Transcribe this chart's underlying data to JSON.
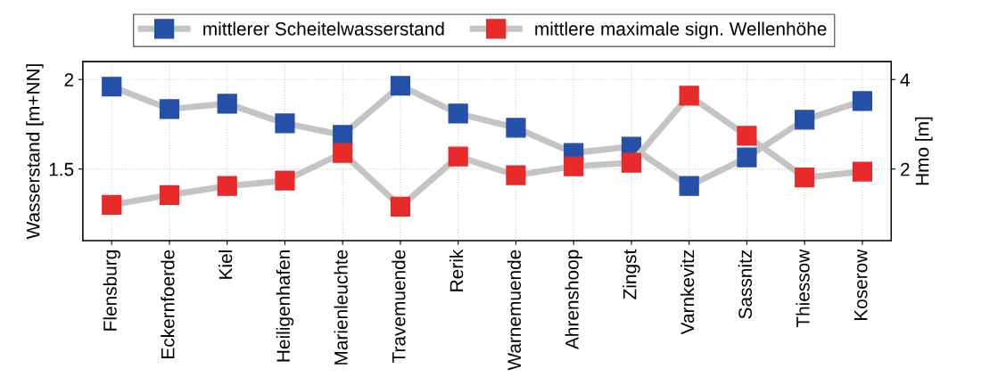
{
  "chart_data": {
    "type": "line",
    "ylabel": "Wasserstand [m+NN]",
    "y2label": "Hmo [m]",
    "categories": [
      "Flensburg",
      "Eckernfoerde",
      "Kiel",
      "Heiligenhafen",
      "Marienleuchte",
      "Travemuende",
      "Rerik",
      "Warnemuende",
      "Ahrenshoop",
      "Zingst",
      "Varnkevitz",
      "Sassnitz",
      "Thiessow",
      "Koserow"
    ],
    "series": [
      {
        "name": "mittlerer Scheitelwasserstand",
        "color": "#2450a8",
        "values": [
          1.96,
          1.835,
          1.865,
          1.755,
          1.69,
          1.965,
          1.81,
          1.73,
          1.59,
          1.625,
          1.405,
          1.565,
          1.775,
          1.88
        ]
      },
      {
        "name": "mittlere maximale sign. Wellenhöhe",
        "color": "#e82a2a",
        "axis": "y2",
        "values": [
          1.2,
          1.42,
          1.62,
          1.74,
          2.36,
          1.16,
          2.28,
          1.86,
          2.06,
          2.14,
          3.64,
          2.74,
          1.81,
          1.94
        ]
      }
    ],
    "ylim": [
      1.1,
      2.1
    ],
    "yticks": [
      1.5,
      2
    ],
    "y2lim": [
      0.4,
      4.4
    ],
    "y2ticks": [
      2,
      4
    ],
    "grid": true,
    "legend": "top",
    "marker": "square",
    "line_style": "solid"
  }
}
